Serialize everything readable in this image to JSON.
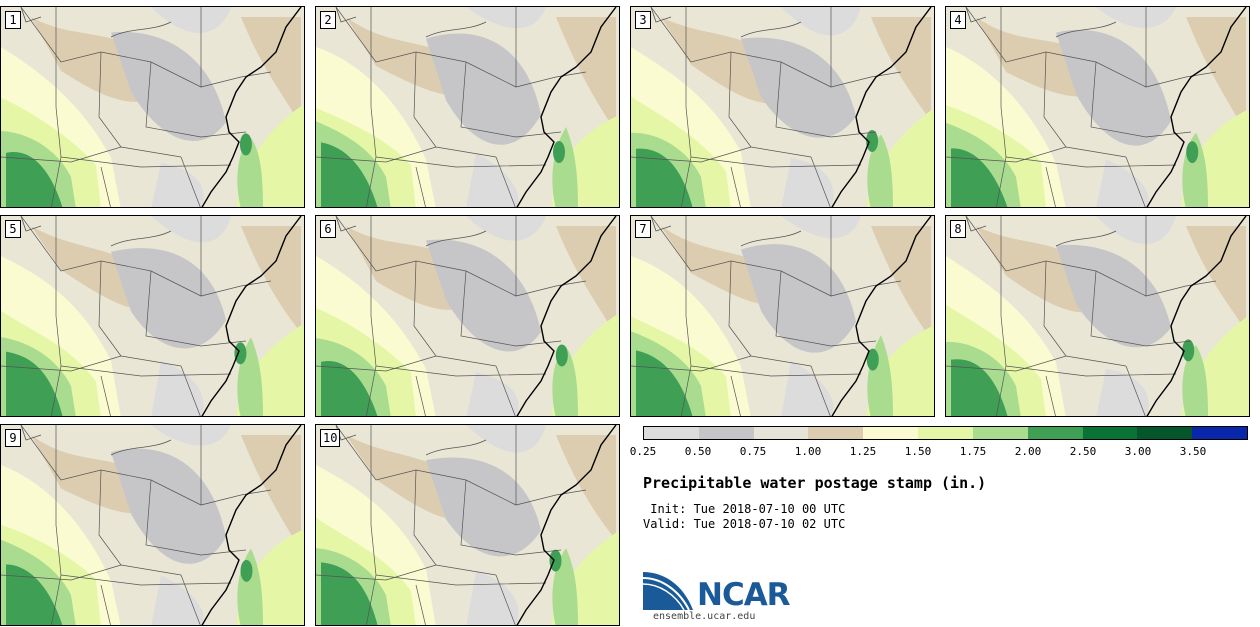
{
  "colors": {
    "bins": [
      "#dcdcdc",
      "#c6c6c8",
      "#e6e4d8",
      "#dccdb0",
      "#fbfbd2",
      "#e5f7a7",
      "#a9dc8f",
      "#3f9f55",
      "#087334",
      "#05562a",
      "#0a26aa"
    ],
    "map_base": "#e9e6d6",
    "boundary": "#555555",
    "coast": "#000000",
    "ncar_blue": "#1a5a99"
  },
  "panels": [
    {
      "label": "1"
    },
    {
      "label": "2"
    },
    {
      "label": "3"
    },
    {
      "label": "4"
    },
    {
      "label": "5"
    },
    {
      "label": "6"
    },
    {
      "label": "7"
    },
    {
      "label": "8"
    },
    {
      "label": "9"
    },
    {
      "label": "10"
    }
  ],
  "colorbar": {
    "ticks": [
      "0.25",
      "0.50",
      "0.75",
      "1.00",
      "1.25",
      "1.50",
      "1.75",
      "2.00",
      "2.50",
      "3.00",
      "3.50"
    ]
  },
  "title": "Precipitable water postage stamp (in.)",
  "init_line": " Init: Tue 2018-07-10 00 UTC",
  "valid_line": "Valid: Tue 2018-07-10 02 UTC",
  "logo": {
    "word": "NCAR",
    "url": "ensemble.ucar.edu"
  }
}
